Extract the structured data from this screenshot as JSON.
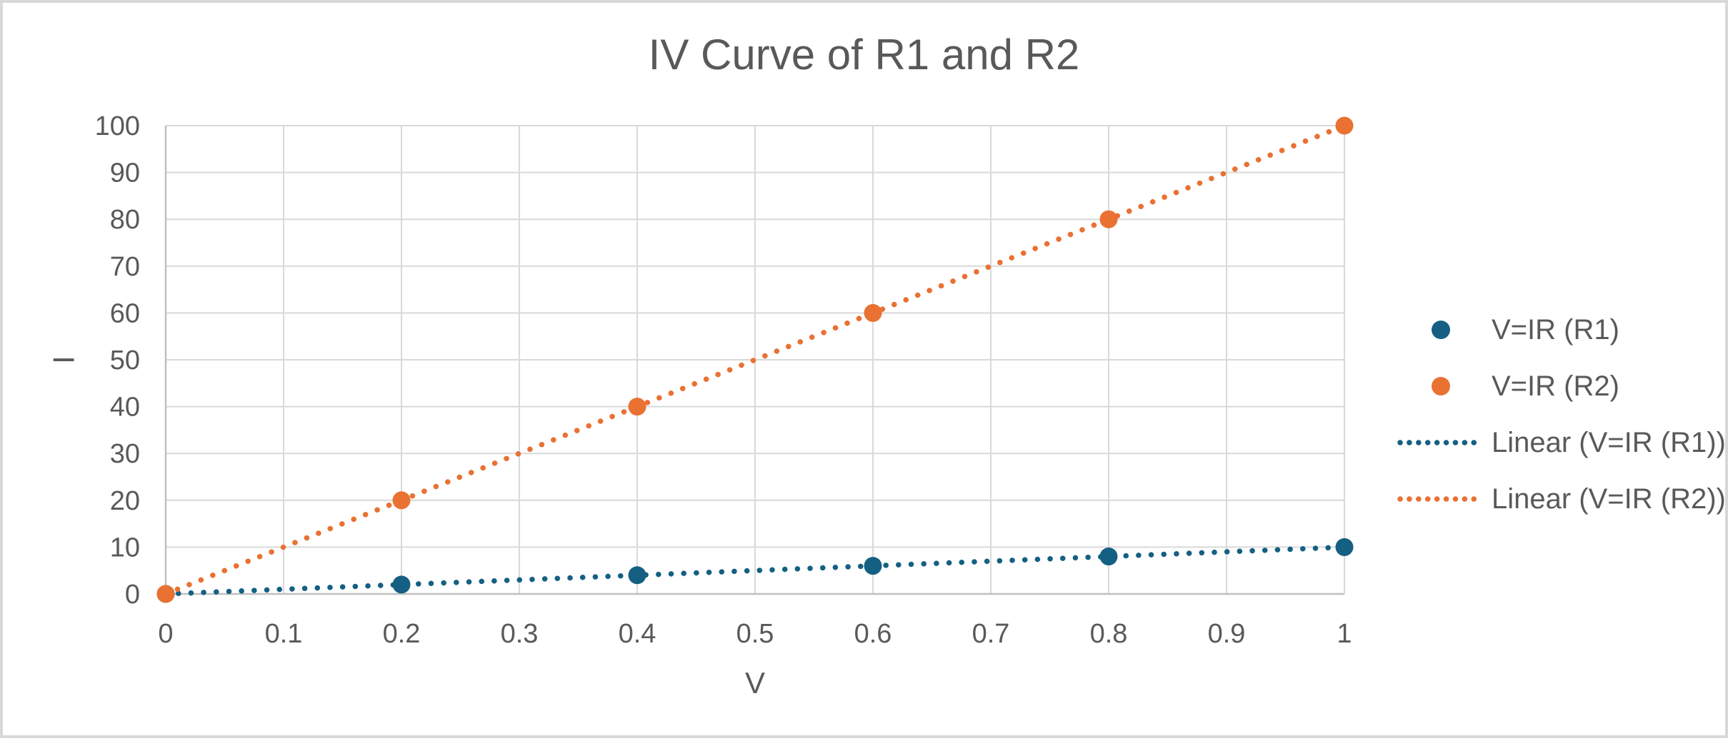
{
  "chart": {
    "title": "IV Curve of R1 and R2",
    "x_axis": {
      "title": "V",
      "ticks": [
        "0",
        "0.1",
        "0.2",
        "0.3",
        "0.4",
        "0.5",
        "0.6",
        "0.7",
        "0.8",
        "0.9",
        "1"
      ]
    },
    "y_axis": {
      "title": "I",
      "ticks": [
        "0",
        "10",
        "20",
        "30",
        "40",
        "50",
        "60",
        "70",
        "80",
        "90",
        "100"
      ]
    },
    "colors": {
      "text": "#595959",
      "gridline": "#D9D9D9",
      "axis_line": "#BFBFBF",
      "background": "#FFFFFF",
      "frame_border": "#D8D8D8",
      "series1": "#156082",
      "series2": "#E97132"
    }
  },
  "chart_data": {
    "type": "scatter",
    "x": [
      0,
      0.2,
      0.4,
      0.6,
      0.8,
      1
    ],
    "series": [
      {
        "name": "V=IR (R1)",
        "values": [
          0,
          2,
          4,
          6,
          8,
          10
        ],
        "color": "#156082",
        "marker": "circle",
        "trendline": {
          "type": "linear",
          "slope": 10,
          "intercept": 0,
          "style": "dotted"
        }
      },
      {
        "name": "V=IR (R2)",
        "values": [
          0,
          20,
          40,
          60,
          80,
          100
        ],
        "color": "#E97132",
        "marker": "circle",
        "trendline": {
          "type": "linear",
          "slope": 100,
          "intercept": 0,
          "style": "dotted"
        }
      }
    ],
    "title": "IV Curve of R1 and R2",
    "xlabel": "V",
    "ylabel": "I",
    "xlim": [
      0,
      1
    ],
    "ylim": [
      0,
      100
    ],
    "x_tick_step": 0.1,
    "y_tick_step": 10,
    "grid": true,
    "legend_position": "right"
  },
  "legend": {
    "items": [
      {
        "label": "V=IR (R1)",
        "marker": "dot",
        "color": "#156082"
      },
      {
        "label": "V=IR (R2)",
        "marker": "dot",
        "color": "#E97132"
      },
      {
        "label": "Linear (V=IR (R1))",
        "marker": "dotted-line",
        "color": "#156082"
      },
      {
        "label": "Linear (V=IR (R2))",
        "marker": "dotted-line",
        "color": "#E97132"
      }
    ]
  }
}
